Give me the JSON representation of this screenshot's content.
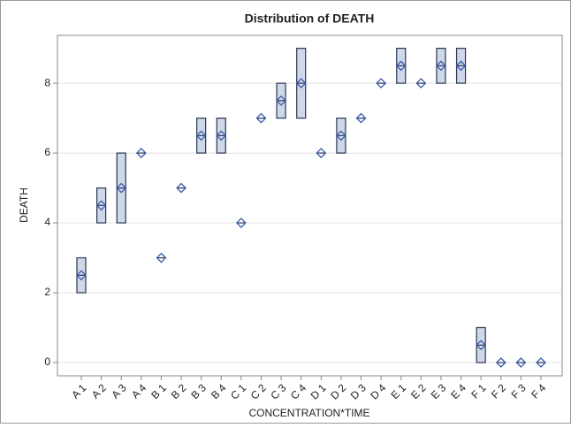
{
  "chart_data": {
    "type": "box",
    "title": "Distribution of DEATH",
    "x_label": "CONCENTRATION*TIME",
    "y_label": "DEATH",
    "categories": [
      "A 1",
      "A 2",
      "A 3",
      "A 4",
      "B 1",
      "B 2",
      "B 3",
      "B 4",
      "C 1",
      "C 2",
      "C 3",
      "C 4",
      "D 1",
      "D 2",
      "D 3",
      "D 4",
      "E 1",
      "E 2",
      "E 3",
      "E 4",
      "F 1",
      "F 2",
      "F 3",
      "F 4"
    ],
    "low": [
      2,
      4,
      4,
      6,
      3,
      5,
      6,
      6,
      4,
      7,
      7,
      7,
      6,
      6,
      7,
      8,
      8,
      8,
      8,
      8,
      0,
      0,
      0,
      0
    ],
    "high": [
      3,
      5,
      6,
      6,
      3,
      5,
      7,
      7,
      4,
      7,
      8,
      9,
      6,
      7,
      7,
      8,
      9,
      8,
      9,
      9,
      1,
      0,
      0,
      0
    ],
    "median": [
      2.5,
      4.5,
      5,
      6,
      3,
      5,
      6.5,
      6.5,
      4,
      7,
      7.5,
      8,
      6,
      6.5,
      7,
      8,
      8.5,
      8,
      8.5,
      8.5,
      0.5,
      0,
      0,
      0
    ],
    "mean": [
      2.5,
      4.5,
      5,
      6,
      3,
      5,
      6.5,
      6.5,
      4,
      7,
      7.5,
      8,
      6,
      6.5,
      7,
      8,
      8.5,
      8,
      8.5,
      8.5,
      0.5,
      0,
      0,
      0
    ],
    "box_color": "#cfd8e8",
    "edge_color": "#2b3552",
    "mean_color": "#3a5bb0",
    "ylim": [
      -0.38,
      9.37
    ],
    "yticks": [
      0,
      2,
      4,
      6,
      8
    ],
    "grid": true
  }
}
